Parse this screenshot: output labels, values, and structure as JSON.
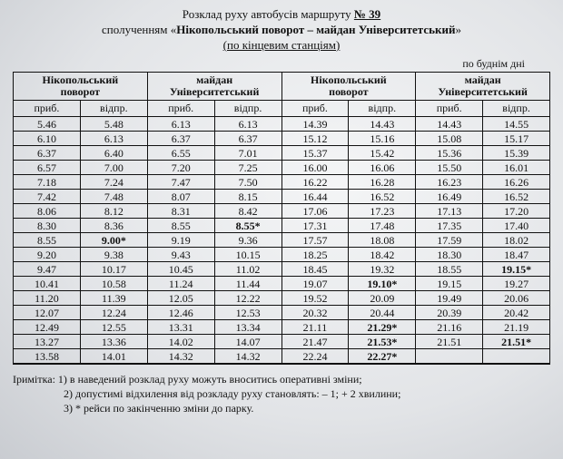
{
  "title": {
    "line1_a": "Розклад руху автобусів маршруту ",
    "line1_route": "№ 39",
    "line2_a": "сполученням «",
    "line2_b": "Нікопольський  поворот – майдан Університетський",
    "line2_c": "»",
    "line3": "(по кінцевим станціям)"
  },
  "weekday_label": "по буднім дні",
  "col_arr": "приб.",
  "col_dep": "відпр.",
  "blocks": [
    {
      "header": "Нікопольський\nповорот",
      "rows": [
        [
          "5.46",
          "5.48"
        ],
        [
          "6.10",
          "6.13"
        ],
        [
          "6.37",
          "6.40"
        ],
        [
          "6.57",
          "7.00"
        ],
        [
          "7.18",
          "7.24"
        ],
        [
          "7.42",
          "7.48"
        ],
        [
          "8.06",
          "8.12"
        ],
        [
          "8.30",
          "8.36"
        ],
        [
          "8.55",
          "9.00*",
          "",
          "bold"
        ],
        [
          "9.20",
          "9.38"
        ],
        [
          "9.47",
          "10.17"
        ],
        [
          "10.41",
          "10.58"
        ],
        [
          "11.20",
          "11.39"
        ],
        [
          "12.07",
          "12.24"
        ],
        [
          "12.49",
          "12.55"
        ],
        [
          "13.27",
          "13.36"
        ],
        [
          "13.58",
          "14.01"
        ]
      ]
    },
    {
      "header": "майдан\nУніверситетський",
      "rows": [
        [
          "6.13",
          "6.13"
        ],
        [
          "6.37",
          "6.37"
        ],
        [
          "6.55",
          "7.01"
        ],
        [
          "7.20",
          "7.25"
        ],
        [
          "7.47",
          "7.50"
        ],
        [
          "8.07",
          "8.15"
        ],
        [
          "8.31",
          "8.42"
        ],
        [
          "8.55",
          "8.55*",
          "",
          "bold"
        ],
        [
          "9.19",
          "9.36"
        ],
        [
          "9.43",
          "10.15"
        ],
        [
          "10.45",
          "11.02"
        ],
        [
          "11.24",
          "11.44"
        ],
        [
          "12.05",
          "12.22"
        ],
        [
          "12.46",
          "12.53"
        ],
        [
          "13.31",
          "13.34"
        ],
        [
          "14.02",
          "14.07"
        ],
        [
          "14.32",
          "14.32"
        ]
      ]
    },
    {
      "header": "Нікопольський\nповорот",
      "rows": [
        [
          "14.39",
          "14.43"
        ],
        [
          "15.12",
          "15.16"
        ],
        [
          "15.37",
          "15.42"
        ],
        [
          "16.00",
          "16.06"
        ],
        [
          "16.22",
          "16.28"
        ],
        [
          "16.44",
          "16.52"
        ],
        [
          "17.06",
          "17.23"
        ],
        [
          "17.31",
          "17.48"
        ],
        [
          "17.57",
          "18.08"
        ],
        [
          "18.25",
          "18.42"
        ],
        [
          "18.45",
          "19.32"
        ],
        [
          "19.07",
          "19.10*",
          "",
          "bold"
        ],
        [
          "19.52",
          "20.09"
        ],
        [
          "20.32",
          "20.44"
        ],
        [
          "21.11",
          "21.29*",
          "",
          "bold"
        ],
        [
          "21.47",
          "21.53*",
          "",
          "bold"
        ],
        [
          "22.24",
          "22.27*",
          "",
          "bold"
        ]
      ]
    },
    {
      "header": "майдан\nУніверситетський",
      "rows": [
        [
          "14.43",
          "14.55"
        ],
        [
          "15.08",
          "15.17"
        ],
        [
          "15.36",
          "15.39"
        ],
        [
          "15.50",
          "16.01"
        ],
        [
          "16.23",
          "16.26"
        ],
        [
          "16.49",
          "16.52"
        ],
        [
          "17.13",
          "17.20"
        ],
        [
          "17.35",
          "17.40"
        ],
        [
          "17.59",
          "18.02"
        ],
        [
          "18.30",
          "18.47"
        ],
        [
          "18.55",
          "19.15*",
          "",
          "bold"
        ],
        [
          "19.15",
          "19.27"
        ],
        [
          "19.49",
          "20.06"
        ],
        [
          "20.39",
          "20.42"
        ],
        [
          "21.16",
          "21.19"
        ],
        [
          "21.51",
          "21.51*",
          "",
          "bold"
        ],
        [
          "",
          ""
        ]
      ]
    }
  ],
  "notes": {
    "lead": "Іримітка:",
    "n1": "1) в наведений розклад руху можуть вноситись оперативні зміни;",
    "n2": "2) допустимі відхилення від розкладу руху становлять:  – 1;  + 2 хвилини;",
    "n3": "3) * рейси по закінченню зміни до парку."
  },
  "style": {
    "border_color": "#111111",
    "bg_center": "#f4f5f6",
    "bg_edge": "#c9ccd1",
    "font": "Times New Roman"
  }
}
